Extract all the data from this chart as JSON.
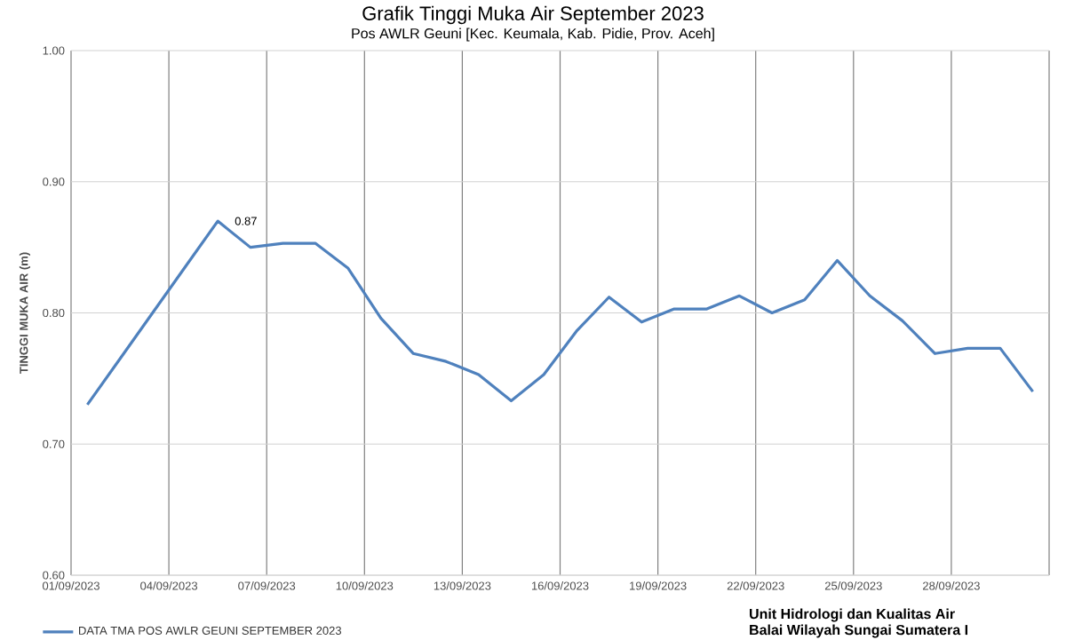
{
  "chart_data": {
    "type": "line",
    "title": "Grafik Tinggi Muka Air September 2023",
    "subtitle": "Pos AWLR Geuni [Kec. Keumala, Kab. Pidie, Prov. Aceh]",
    "ylabel": "TINGGI MUKA AIR (m)",
    "x": [
      "2023-09-01T12:00",
      "2023-09-02T12:00",
      "2023-09-03T12:00",
      "2023-09-04T12:00",
      "2023-09-05T12:00",
      "2023-09-06T12:00",
      "2023-09-07T12:00",
      "2023-09-08T12:00",
      "2023-09-09T12:00",
      "2023-09-10T12:00",
      "2023-09-11T12:00",
      "2023-09-12T12:00",
      "2023-09-13T12:00",
      "2023-09-14T12:00",
      "2023-09-15T12:00",
      "2023-09-16T12:00",
      "2023-09-17T12:00",
      "2023-09-18T12:00",
      "2023-09-19T12:00",
      "2023-09-20T12:00",
      "2023-09-21T12:00",
      "2023-09-22T12:00",
      "2023-09-23T12:00",
      "2023-09-24T12:00",
      "2023-09-25T12:00",
      "2023-09-26T12:00",
      "2023-09-27T12:00",
      "2023-09-28T12:00",
      "2023-09-29T12:00",
      "2023-09-30T12:00"
    ],
    "series": [
      {
        "name": "DATA TMA POS AWLR GEUNI SEPTEMBER 2023",
        "color": "#4f81bd",
        "values": [
          0.73,
          0.765,
          0.8,
          0.835,
          0.87,
          0.85,
          0.853,
          0.853,
          0.834,
          0.796,
          0.769,
          0.763,
          0.753,
          0.733,
          0.753,
          0.786,
          0.812,
          0.793,
          0.803,
          0.803,
          0.813,
          0.8,
          0.81,
          0.84,
          0.813,
          0.794,
          0.769,
          0.773,
          0.773,
          0.74
        ],
        "value_labels": [
          null,
          null,
          null,
          null,
          "0.87",
          null,
          null,
          null,
          null,
          null,
          null,
          null,
          null,
          null,
          null,
          null,
          null,
          null,
          null,
          null,
          null,
          null,
          null,
          null,
          null,
          null,
          null,
          null,
          null,
          null
        ]
      }
    ],
    "xlim": [
      "2023-09-01",
      "2023-10-01"
    ],
    "xticks": [
      {
        "value": "2023-09-01",
        "label": "01/09/2023"
      },
      {
        "value": "2023-09-04",
        "label": "04/09/2023"
      },
      {
        "value": "2023-09-07",
        "label": "07/09/2023"
      },
      {
        "value": "2023-09-10",
        "label": "10/09/2023"
      },
      {
        "value": "2023-09-13",
        "label": "13/09/2023"
      },
      {
        "value": "2023-09-16",
        "label": "16/09/2023"
      },
      {
        "value": "2023-09-19",
        "label": "19/09/2023"
      },
      {
        "value": "2023-09-22",
        "label": "22/09/2023"
      },
      {
        "value": "2023-09-25",
        "label": "25/09/2023"
      },
      {
        "value": "2023-09-28",
        "label": "28/09/2023"
      },
      {
        "value": "2023-10-01",
        "label": null
      }
    ],
    "ylim": [
      0.6,
      1.0
    ],
    "yticks": [
      {
        "value": 0.6,
        "label": "0.60"
      },
      {
        "value": 0.7,
        "label": "0.70"
      },
      {
        "value": 0.8,
        "label": "0.80"
      },
      {
        "value": 0.9,
        "label": "0.90"
      },
      {
        "value": 1.0,
        "label": "1.00"
      }
    ],
    "grid": true,
    "legend": "bottom",
    "marker": "none",
    "line_style": "solid",
    "annotations": [
      "Unit Hidrologi dan Kualitas Air",
      "Balai Wilayah Sungai Sumatera I"
    ]
  }
}
